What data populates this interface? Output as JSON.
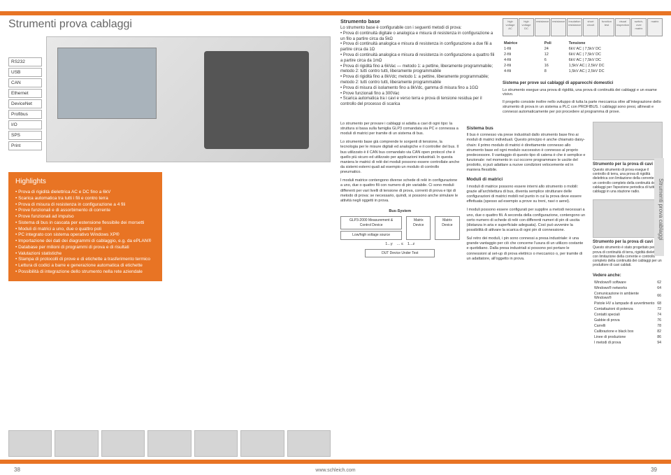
{
  "title_main": "Strumenti prova cablaggi",
  "interfaces": [
    "RS232",
    "USB",
    "CAN",
    "Ethernet",
    "DeviceNet",
    "Profibus",
    "I/O",
    "SPS",
    "Print"
  ],
  "highlights_title": "Highlights",
  "highlights": [
    "Prova di rigidità dielettrica AC e DC fino a 6kV",
    "Scarica automatica tra tutti i fili e contro terra",
    "Prova di misura di resistenza in configurazione a 4 fili",
    "Prove funzionali e di assorbimento di corrente",
    "Prove funzionali ad impulso",
    "Sistema di bus in cascata per estensione flessibile dei morsetti",
    "Moduli di matrici a uno, due o quattro poli",
    "PC integrato con sistema operativo Windows XP®",
    "Importazione dei dati dei diagrammi di cablaggio, e.g. da ePLAN®",
    "Database per milioni di programmi di prova e di risultati",
    "Valutazioni statistiche",
    "Stampa di protocolli di prove e di etichette a trasferimento termico",
    "Lettura di codici a barre e generazione automatica di etichette",
    "Possibilità di integrazione dello strumento nella rete aziendale"
  ],
  "strumento_base_title": "Strumento base",
  "strumento_base_intro": "Lo strumento base è configurabile con i seguenti metodi di prova:",
  "strumento_base_items": [
    "Prova di continuità digitale o analogica e misura di resistenza in configurazione a un filo a partire circa da 5kΩ",
    "Prova di continuità analogica e misura di resistenza in configurazione a due fili a partire circa da 1Ω",
    "Prova di continuità analogica e misura di resistenza in configurazione a quattro fili a partire circa da 1mΩ",
    "Prova di rigidità fino a 6kVac — metodo 1: a pettine, liberamente programmabile; metodo 2: tutti contro tutti, liberamente programmabile",
    "Prova di rigidità fino a 8kVdc; metodo 1: a pettine, liberamente programmabile; metodo 2: tutti contro tutti, liberamente programmabile",
    "Prova di misura di isolamento fino a 8kVdc, gamma di misura fino a 1GΩ",
    "Prove funzionali fino a 300Vac",
    "Scarica automatica tra i cavi e verso terra e prova di tensione residua per il controllo del processo di scarica"
  ],
  "test_icons": [
    "high voltage AC",
    "high voltage DC",
    "resistance",
    "resistance",
    "insulation resistance",
    "short circuit",
    "function test",
    "visual inspection",
    "switch-over matrix",
    "matrix"
  ],
  "matrix_headers": [
    "Matrice",
    "Poli",
    "Tensione"
  ],
  "matrix_rows": [
    [
      "1-fili",
      "24",
      "6kV AC | 7,5kV DC"
    ],
    [
      "2-fili",
      "12",
      "6kV AC | 7,5kV DC"
    ],
    [
      "4-fili",
      "6",
      "6kV AC | 7,5kV DC"
    ],
    [
      "2-fili",
      "16",
      "1,5kV AC | 2,5kV DC"
    ],
    [
      "4-fili",
      "8",
      "1,5kV AC | 2,5kV DC"
    ]
  ],
  "sistema_title": "Sistema per prove sui cablaggi di apparecchi domestici",
  "sistema_p1": "Lo strumento esegue una prova di rigidità, una prova di continuità dei cablaggi e un esame visivo.",
  "sistema_p2": "Il progetto consiste inoltre nello sviluppo di tutta la parte meccanica oltre all'integrazione dello strumento di prova in un sistema a PLC con PROFIBUS. I cablaggi sono presi, allineati e connessi automaticamente per poi procedere al programma di prove.",
  "col1_p1": "Lo strumento per provare i cablaggi si adatta a cavi di ogni tipo: la struttura si basa sulla famiglia GLP3 comandata via PC e connessa a moduli di matrici per tramite di un sistema di bus.",
  "col1_p2": "Lo strumento base già comprende le sorgenti di tensione, la tecnologia per le misure digitali ed analogiche e il controller del bus. Il bus utilizzato è il CAN bus comandato via CAN open protocol che è quello più sicuro ed utilizzato per applicazioni industriali. In questa maniera le matrici di relè dei moduli possono essere controllate anche da sistemi esterni quali ad esempio un modulo di controllo pneumatico.",
  "col1_p3": "I moduli matrice contengono diverse schede di relè in configurazione a uno, due o quattro fili con numero di pin variabile. Ci sono moduli differenti per vari livelli di tensione di prova, correnti di prova e tipi di metodo di prova: se necessario, quindi, si possono anche simulare le attività negli oggetti in prova.",
  "diagram": {
    "bus_label": "Bus-System",
    "glp3": "GLP3-2000 Measurement & Control Device",
    "lowhigh": "Low/high voltage source",
    "matrix": "Matrix Device",
    "range1": "1...y",
    "dots": "... ≤",
    "range2": "1...z",
    "dut": "DUT Device Under Test"
  },
  "col2_h1": "Sistema bus",
  "col2_p1": "Il bus è connesso via prese industriali dallo strumento base fino ai moduli di matrici individuali. Questo principio è anche chiamato daisy-chain: il primo modulo di matrici è direttamente connesso allo strumento base ed ogni modulo successivo è connesso al proprio predecessore. Il vantaggio di questo tipo di catena è che è semplice e funzionale: nel momento in cui occorre programmare le uscite del prodotto, si può adattare a nuove condizioni velocemente ed in maniera flessibile.",
  "col2_h2": "Moduli di matrici",
  "col2_p2": "I moduli di matrice possono essere interni allo strumento o mobili: grazie all'architettura di bus, diventa semplice strutturare delle configurazioni di matrici mobili nel punto in cui la prova deve essere effettuata (spesso ad esempio a prove su treni, navi o aerei).",
  "col2_p3": "I moduli possono essere configurati per supplire a metodi necessari a uno, due o quattro fili. A seconda della configurazione, contengono un certo numero di schede di relè con differenti numeri di pin di uscita (distanza in aria e superficiale adeguata). Così può avvenire la possibilità di attivare la scarica di ogni pin di connessione.",
  "col2_p4": "Sul retro dei moduli, i pin sono connessi a presa industriale: è una grande vantaggio per ciò che concerne l'usura di un utilizzo costante e quotidiano. Dalla presa industriali si possono poi portare le connessioni al set-up di prova elettrico o meccanico o, per tramite di un adattatore, all'oggetto in prova.",
  "sidebar1_h": "Strumento per la prova di cavi",
  "sidebar1_p": "Questo strumento di prova esegue il controllo di terra, una prova di rigidità dielettrica con limitazione della corrente ed un controllo completo della continuità dei cablaggi per l'ispezione periodica di tutti i cablaggi in una stazione radio.",
  "sidebar2_h": "Strumento per la prova di cavi",
  "sidebar2_p": "Questo strumento è stato progettato per la prova di continuità di terra, rigidità dielettrica con limitazione della corrente e controllo completo della continuità dei cablaggi per un produttore di cavi cablati.",
  "vedere_h": "Vedere anche:",
  "vedere_rows": [
    [
      "Windows® software",
      "62"
    ],
    [
      "Windows® networks",
      "64"
    ],
    [
      "Comunicazione in ambiente Windows®",
      "66"
    ],
    [
      "Pistole HV a lampade di avvertimento",
      "68"
    ],
    [
      "Contattazioni di potenza",
      "72"
    ],
    [
      "Contatti speciali",
      "74"
    ],
    [
      "Gabbie di prova",
      "76"
    ],
    [
      "Carrelli",
      "78"
    ],
    [
      "Calibrazione e black box",
      "82"
    ],
    [
      "Linee di produzione",
      "86"
    ],
    [
      "I metodi di prova",
      "94"
    ]
  ],
  "side_tab": "Strumenti prova cablaggi",
  "page_left": "38",
  "page_right": "39",
  "footer_url": "www.schleich.com",
  "colors": {
    "orange": "#e87424",
    "text": "#333333",
    "grey": "#666666"
  }
}
